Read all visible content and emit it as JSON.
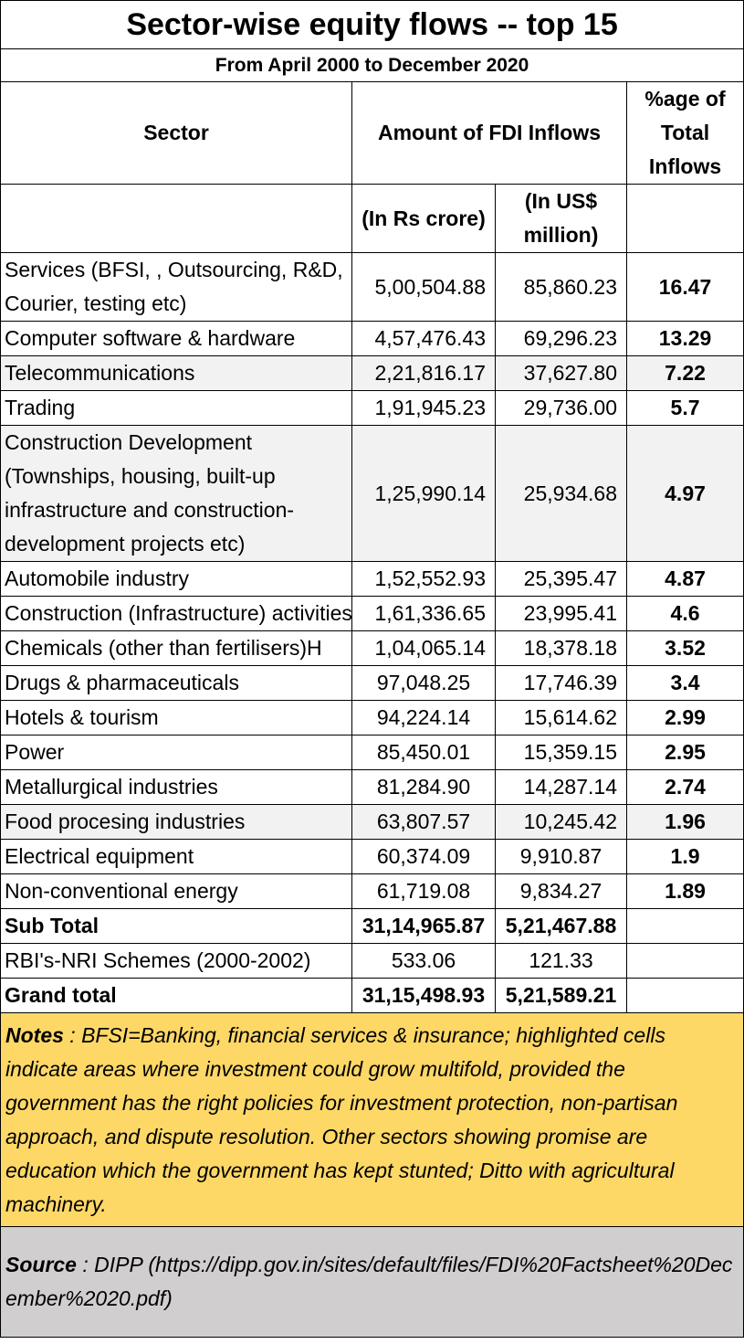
{
  "title": "Sector-wise equity flows -- top 15",
  "subtitle": "From April 2000 to December 2020",
  "headers": {
    "sector": "Sector",
    "amount": "Amount of FDI Inflows",
    "percent": "%age of Total Inflows",
    "rs": "(In Rs crore)",
    "usd": "(In US$ million)"
  },
  "rows": [
    {
      "sector": "Services  (BFSI, , Outsourcing, R&D, Courier, testing etc)",
      "rs": "5,00,504.88",
      "usd": "85,860.23",
      "pct": "16.47"
    },
    {
      "sector": "Computer software & hardware",
      "rs": "4,57,476.43",
      "usd": "69,296.23",
      "pct": "13.29"
    },
    {
      "sector": "Telecommunications",
      "rs": "2,21,816.17",
      "usd": "37,627.80",
      "pct": "7.22"
    },
    {
      "sector": "Trading",
      "rs": "1,91,945.23",
      "usd": "29,736.00",
      "pct": "5.7"
    },
    {
      "sector": "Construction Development (Townships, housing, built-up infrastructure and construction-development projects etc)",
      "rs": "1,25,990.14",
      "usd": "25,934.68",
      "pct": "4.97"
    },
    {
      "sector": "Automobile industry",
      "rs": "1,52,552.93",
      "usd": "25,395.47",
      "pct": "4.87"
    },
    {
      "sector": "Construction (Infrastructure) activities",
      "rs": "1,61,336.65",
      "usd": "23,995.41",
      "pct": "4.6"
    },
    {
      "sector": "Chemicals (other than fertilisers)H",
      "rs": "1,04,065.14",
      "usd": "18,378.18",
      "pct": "3.52"
    },
    {
      "sector": "Drugs & pharmaceuticals",
      "rs": "97,048.25",
      "usd": "17,746.39",
      "pct": "3.4"
    },
    {
      "sector": "Hotels & tourism",
      "rs": "94,224.14",
      "usd": "15,614.62",
      "pct": "2.99"
    },
    {
      "sector": "Power",
      "rs": "85,450.01",
      "usd": "15,359.15",
      "pct": "2.95"
    },
    {
      "sector": "Metallurgical industries",
      "rs": "81,284.90",
      "usd": "14,287.14",
      "pct": "2.74"
    },
    {
      "sector": "Food procesing industries",
      "rs": "63,807.57",
      "usd": "10,245.42",
      "pct": "1.96"
    },
    {
      "sector": "Electrical equipment",
      "rs": "60,374.09",
      "usd": "9,910.87",
      "pct": "1.9"
    },
    {
      "sector": "Non-conventional energy",
      "rs": "61,719.08",
      "usd": "9,834.27",
      "pct": "1.89"
    }
  ],
  "subtotal": {
    "label": "Sub Total",
    "rs": "31,14,965.87",
    "usd": "5,21,467.88"
  },
  "rbi": {
    "label": "RBI's-NRI Schemes (2000-2002)",
    "rs": "533.06",
    "usd": "121.33"
  },
  "grand": {
    "label": "Grand total",
    "rs": "31,15,498.93",
    "usd": "5,21,589.21"
  },
  "notes": {
    "label": "Notes",
    "text": " : BFSI=Banking, financial services & insurance; highlighted cells indicate areas where investment could grow multifold, provided the government has the right policies for investment protection, non-partisan approach, and dispute resolution. Other sectors showing promise are education which the government has kept stunted; Ditto with agricultural machinery."
  },
  "source": {
    "label": "Source",
    "text": " :  DIPP (https://dipp.gov.in/sites/default/files/FDI%20Factsheet%20December%2020.pdf)"
  }
}
